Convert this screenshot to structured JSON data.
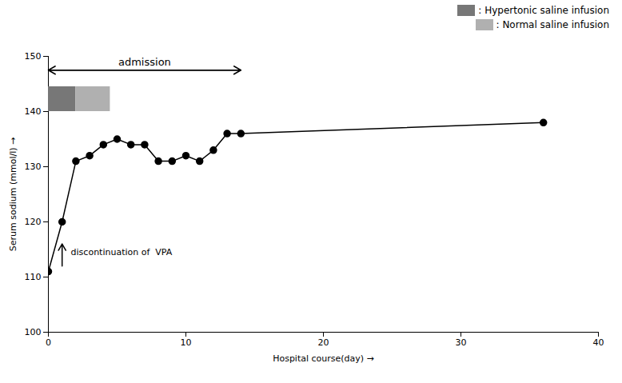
{
  "chart_data": {
    "type": "line",
    "x": [
      0,
      1,
      2,
      3,
      4,
      5,
      6,
      7,
      8,
      9,
      10,
      11,
      12,
      13,
      14,
      36
    ],
    "values": [
      111,
      120,
      131,
      132,
      134,
      135,
      134,
      134,
      131,
      131,
      132,
      131,
      133,
      136,
      136,
      138
    ],
    "color": "#000000",
    "marker": "circle",
    "line_style": "solid",
    "xlim": [
      0,
      40
    ],
    "ylim": [
      100,
      150
    ],
    "xticks": [
      0,
      10,
      20,
      30,
      40
    ],
    "yticks": [
      100,
      110,
      120,
      130,
      140,
      150
    ],
    "xlabel": "Hospital course(day)",
    "ylabel": "Serum sodium (mmol/l)",
    "legend": "upper right",
    "admission": {
      "text": "admission",
      "x_start": 0,
      "x_end": 14,
      "y": 147.5,
      "text_x": 7
    },
    "infusions": [
      {
        "name": ": Hypertonic saline infusion",
        "color": "#777777",
        "x_start": 0,
        "x_end": 2.0,
        "y_bottom": 140,
        "y_top": 144.5
      },
      {
        "name": ": Normal saline infusion",
        "color": "#b0b0b0",
        "x_start": 2.0,
        "x_end": 4.5,
        "y_bottom": 140,
        "y_top": 144.5
      }
    ],
    "vpa": {
      "text": "discontinuation of  VPA",
      "x": 1,
      "y_bottom": 112,
      "y_top": 116,
      "text_x": 1.4,
      "text_y": 114.5
    }
  }
}
